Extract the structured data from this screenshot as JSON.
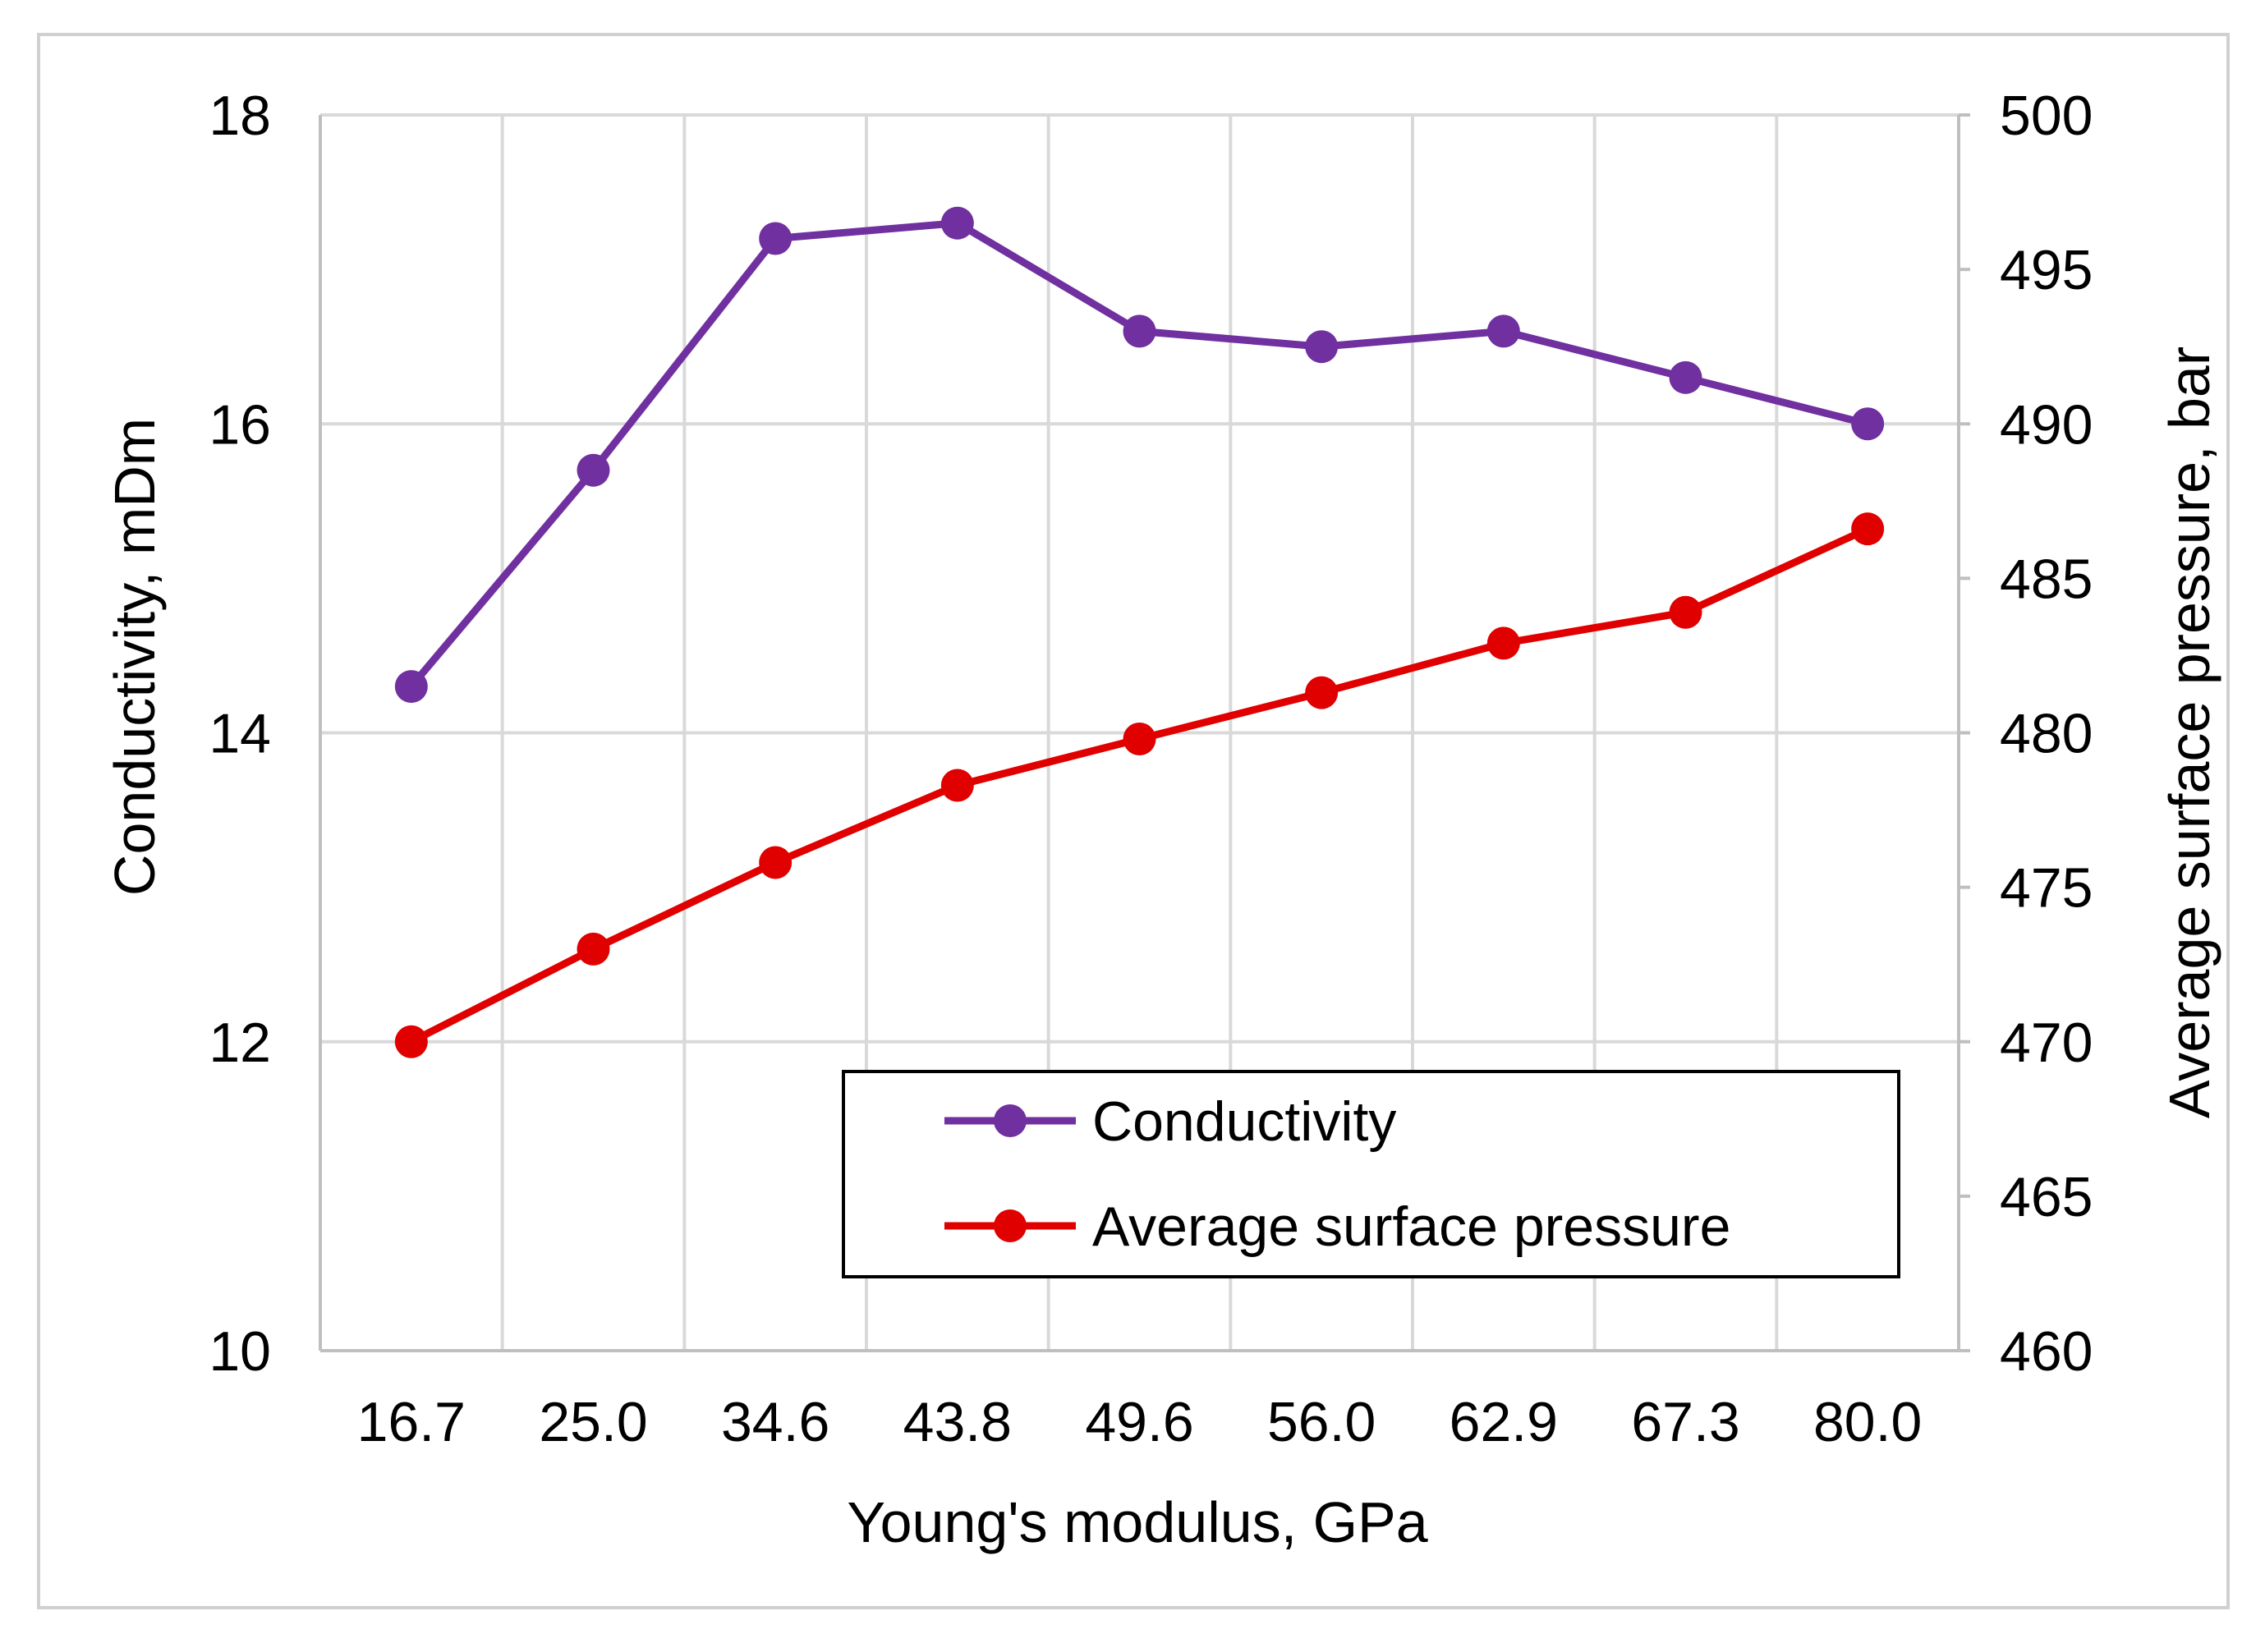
{
  "chart_data": {
    "type": "line",
    "title": "",
    "xlabel": "Young's modulus, GPa",
    "ylabel_left": "Conductivity, mDm",
    "ylabel_right": "Average surface pressure, bar",
    "categories": [
      "16.7",
      "25.0",
      "34.6",
      "43.8",
      "49.6",
      "56.0",
      "62.9",
      "67.3",
      "80.0"
    ],
    "y_left": {
      "min": 10,
      "max": 18,
      "ticks": [
        "10",
        "12",
        "14",
        "16",
        "18"
      ]
    },
    "y_right": {
      "min": 460,
      "max": 500,
      "ticks": [
        "460",
        "465",
        "470",
        "475",
        "480",
        "485",
        "490",
        "495",
        "500"
      ]
    },
    "grid": true,
    "legend_position": "lower-right",
    "series": [
      {
        "name": "Conductivity",
        "axis": "left",
        "color": "#7030A0",
        "values": [
          14.3,
          15.7,
          17.2,
          17.3,
          16.6,
          16.5,
          16.6,
          16.3,
          16.0
        ]
      },
      {
        "name": "Average surface pressure",
        "axis": "right",
        "color": "#E00000",
        "values": [
          470.0,
          473.0,
          475.8,
          478.3,
          479.8,
          481.3,
          482.9,
          483.9,
          486.6
        ]
      }
    ]
  }
}
